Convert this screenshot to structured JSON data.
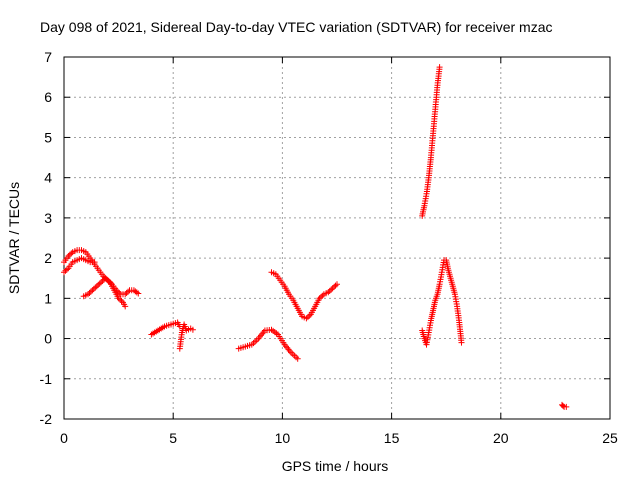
{
  "chart_data": {
    "type": "scatter",
    "title": "Day 098 of 2021, Sidereal Day-to-day VTEC variation (SDTVAR) for receiver mzac",
    "xlabel": "GPS time / hours",
    "ylabel": "SDTVAR / TECUs",
    "xlim": [
      0,
      25
    ],
    "ylim": [
      -2,
      7
    ],
    "xticks": [
      "0",
      "5",
      "10",
      "15",
      "20",
      "25"
    ],
    "yticks": [
      "-2",
      "-1",
      "0",
      "1",
      "2",
      "3",
      "4",
      "5",
      "6",
      "7"
    ],
    "grid": true,
    "marker": "+",
    "color": "#ff0000",
    "series": [
      {
        "x": [
          0.0,
          0.2,
          0.4,
          0.6,
          0.8,
          1.0,
          1.2,
          1.4,
          1.6,
          1.8,
          2.0,
          2.2,
          2.4,
          2.6,
          2.8,
          3.0,
          3.2,
          3.4
        ],
        "y": [
          1.9,
          2.05,
          2.15,
          2.2,
          2.2,
          2.15,
          2.0,
          1.85,
          1.7,
          1.55,
          1.45,
          1.35,
          1.2,
          1.1,
          1.1,
          1.2,
          1.2,
          1.12
        ]
      },
      {
        "x": [
          0.0,
          0.2,
          0.4,
          0.6,
          0.8,
          1.0,
          1.2,
          1.4
        ],
        "y": [
          1.65,
          1.75,
          1.9,
          1.95,
          2.0,
          1.95,
          1.9,
          1.9
        ]
      },
      {
        "x": [
          0.9,
          1.1,
          1.3,
          1.5,
          1.7,
          1.9,
          2.1,
          2.3,
          2.5,
          2.7,
          2.8
        ],
        "y": [
          1.05,
          1.1,
          1.2,
          1.3,
          1.4,
          1.5,
          1.4,
          1.2,
          1.0,
          0.9,
          0.8
        ]
      },
      {
        "x": [
          4.0,
          4.3,
          4.6,
          4.9,
          5.2,
          5.3
        ],
        "y": [
          0.1,
          0.2,
          0.3,
          0.35,
          0.4,
          0.3
        ]
      },
      {
        "x": [
          5.3,
          5.4,
          5.5,
          5.6,
          5.8,
          5.9
        ],
        "y": [
          -0.25,
          0.15,
          0.35,
          0.2,
          0.25,
          0.22
        ]
      },
      {
        "x": [
          8.0,
          8.3,
          8.6,
          8.9,
          9.2,
          9.5,
          9.8,
          10.1,
          10.4,
          10.7
        ],
        "y": [
          -0.25,
          -0.2,
          -0.15,
          0.0,
          0.2,
          0.22,
          0.1,
          -0.15,
          -0.35,
          -0.5
        ]
      },
      {
        "x": [
          9.5,
          9.7,
          9.9,
          10.1,
          10.3,
          10.5,
          10.7,
          10.9,
          11.1,
          11.3,
          11.5,
          11.7,
          11.9,
          12.1,
          12.3,
          12.5
        ],
        "y": [
          1.65,
          1.6,
          1.45,
          1.3,
          1.1,
          0.95,
          0.75,
          0.55,
          0.5,
          0.6,
          0.8,
          1.0,
          1.1,
          1.15,
          1.25,
          1.35
        ]
      },
      {
        "x": [
          16.4,
          16.5,
          16.6,
          16.7,
          16.8,
          16.9,
          17.0,
          17.1,
          17.2
        ],
        "y": [
          3.05,
          3.3,
          3.6,
          4.0,
          4.5,
          5.1,
          5.7,
          6.3,
          6.75
        ]
      },
      {
        "x": [
          16.4,
          16.5,
          16.6,
          16.7,
          16.8,
          16.9,
          17.0,
          17.1,
          17.2,
          17.3,
          17.4,
          17.5,
          17.6,
          17.7,
          17.8,
          17.9,
          18.0,
          18.1,
          18.2
        ],
        "y": [
          0.2,
          0.0,
          -0.15,
          0.15,
          0.45,
          0.7,
          0.95,
          1.1,
          1.35,
          1.65,
          1.95,
          1.95,
          1.7,
          1.5,
          1.3,
          1.1,
          0.8,
          0.4,
          -0.1
        ]
      },
      {
        "x": [
          22.8,
          22.9,
          23.0
        ],
        "y": [
          -1.65,
          -1.7,
          -1.7
        ]
      }
    ]
  }
}
